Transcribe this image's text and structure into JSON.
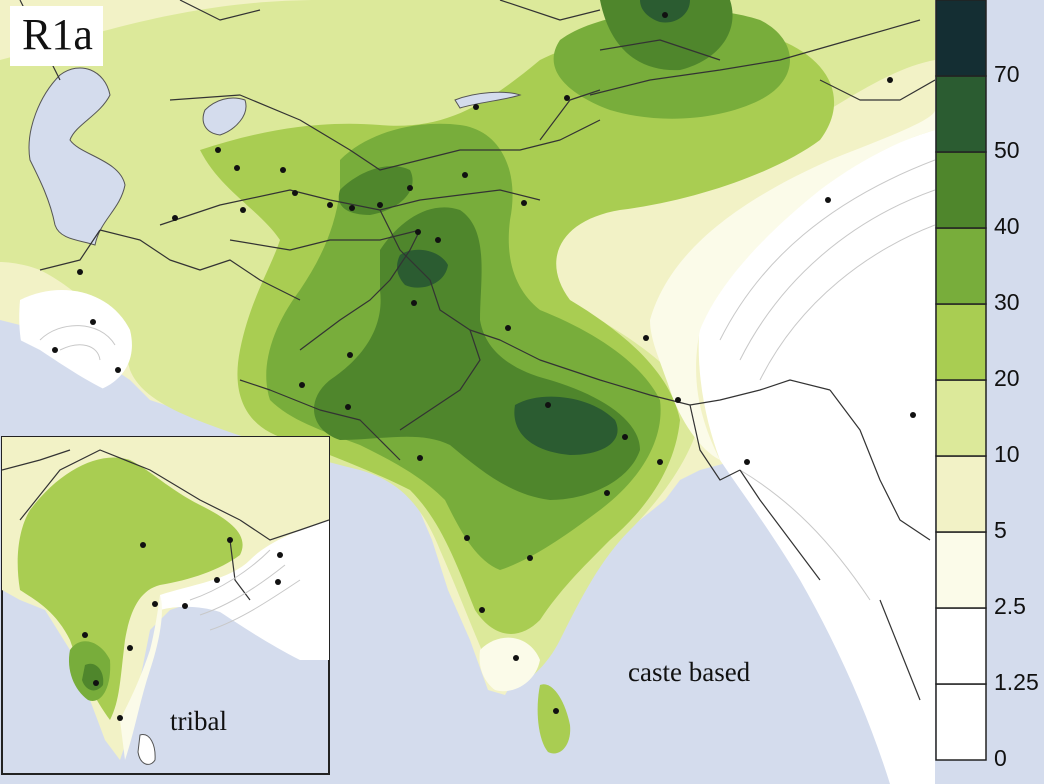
{
  "map": {
    "title": "R1a",
    "inset_label": "tribal",
    "main_label": "caste based"
  },
  "legend": {
    "bins": [
      {
        "range": "0 to 1.25",
        "color": "#ffffff"
      },
      {
        "range": "1.25 to 2.5",
        "color": "#ffffff"
      },
      {
        "range": "2.5 to 5",
        "color": "#fbfbe9"
      },
      {
        "range": "5 to 10",
        "color": "#f2f2c6"
      },
      {
        "range": "10 to 20",
        "color": "#dce99a"
      },
      {
        "range": "20 to 30",
        "color": "#a9cd52"
      },
      {
        "range": "30 to 40",
        "color": "#78ad3b"
      },
      {
        "range": "40 to 50",
        "color": "#4f862c"
      },
      {
        "range": "50 to 70",
        "color": "#2b5c31"
      },
      {
        "range": "70+",
        "color": "#142e33"
      }
    ],
    "ticks": [
      "70",
      "50",
      "40",
      "30",
      "20",
      "10",
      "5",
      "2.5",
      "1.25",
      "0"
    ]
  },
  "colors": {
    "sea": "#d4dced",
    "level_0": "#ffffff",
    "level_1": "#fbfbe9",
    "level_2": "#f2f2c6",
    "level_3": "#dce99a",
    "level_4": "#a9cd52",
    "level_5": "#78ad3b",
    "level_6": "#4f862c",
    "level_7": "#2b5c31",
    "level_8": "#142e33"
  }
}
